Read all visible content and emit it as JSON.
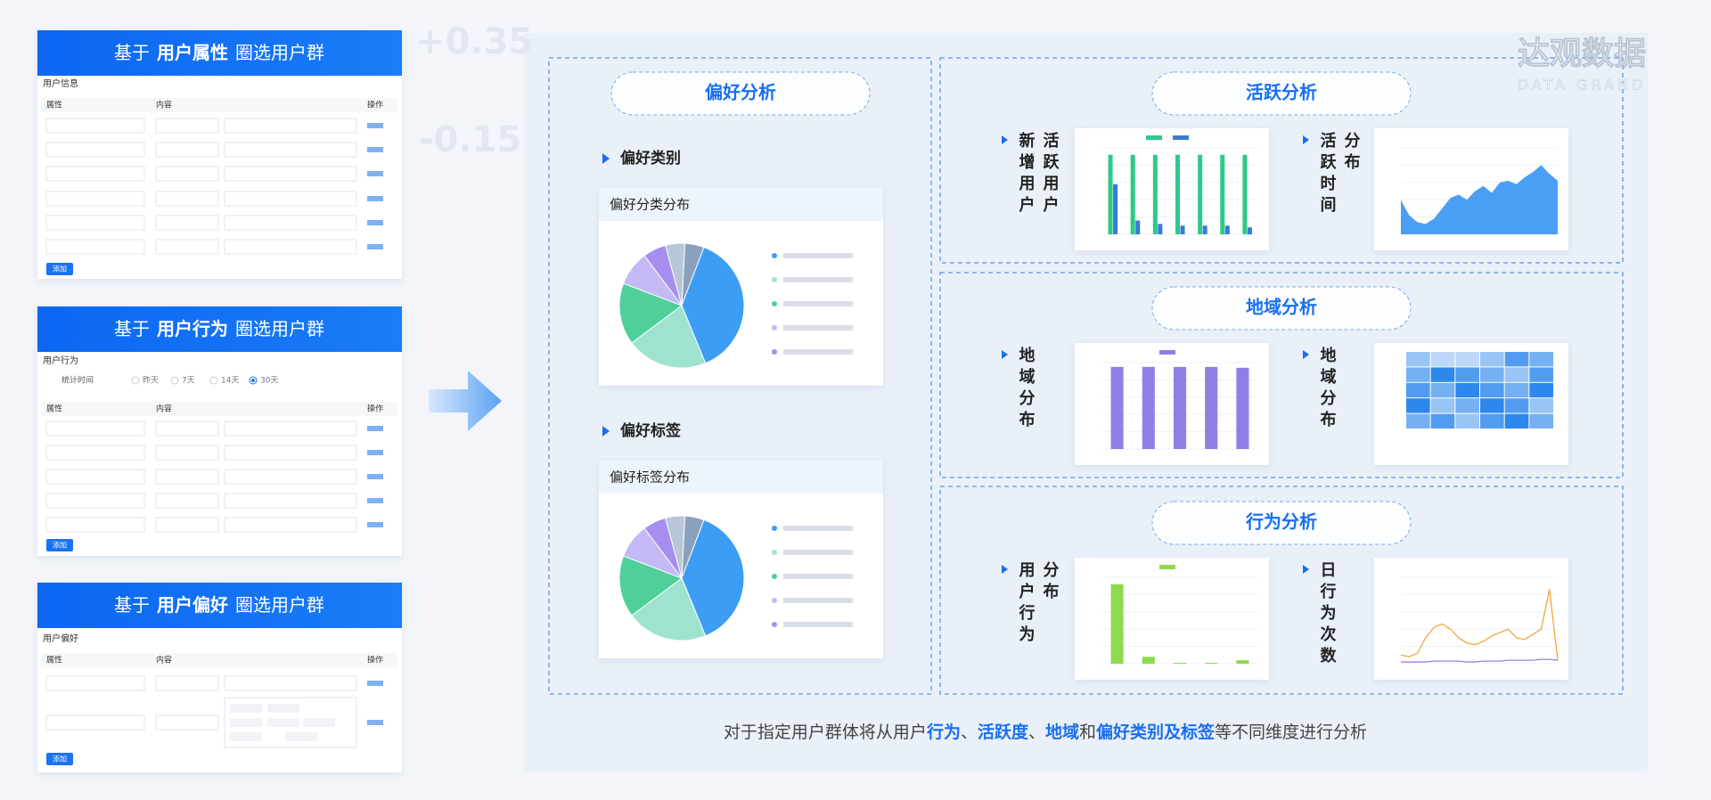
{
  "brand": {
    "name": "达观数据",
    "sub": "DATA GRAND"
  },
  "background_numbers": [
    "+0.35",
    "-0.15"
  ],
  "left_cards": [
    {
      "prefix": "基于",
      "key": "用户属性",
      "suffix": "圈选用户群",
      "section": "用户信息",
      "columns": [
        "属性",
        "内容",
        "操作"
      ],
      "button": "添加"
    },
    {
      "prefix": "基于",
      "key": "用户行为",
      "suffix": "圈选用户群",
      "section": "用户行为",
      "filter_label": "统计时间",
      "filter_options": [
        "昨天",
        "7天",
        "14天",
        "30天"
      ],
      "columns": [
        "属性",
        "内容",
        "操作"
      ],
      "button": "添加"
    },
    {
      "prefix": "基于",
      "key": "用户偏好",
      "suffix": "圈选用户群",
      "section": "用户偏好",
      "columns": [
        "属性",
        "内容",
        "操作"
      ],
      "button": "添加"
    }
  ],
  "preference": {
    "title": "偏好分析",
    "blocks": [
      {
        "heading": "偏好类别",
        "card_title": "偏好分类分布",
        "values": [
          5,
          38,
          21,
          16,
          9,
          6,
          5
        ],
        "colors": [
          "#8aa0bf",
          "#3d9df5",
          "#9ee3cf",
          "#4fcf9a",
          "#c4b9f4",
          "#a68ef0",
          "#b9c6d8"
        ]
      },
      {
        "heading": "偏好标签",
        "card_title": "偏好标签分布",
        "values": [
          5,
          38,
          21,
          16,
          9,
          6,
          5
        ],
        "colors": [
          "#8aa0bf",
          "#3d9df5",
          "#9ee3cf",
          "#4fcf9a",
          "#c4b9f4",
          "#a68ef0",
          "#b9c6d8"
        ]
      }
    ]
  },
  "panels": [
    {
      "title": "活跃分析",
      "charts": [
        {
          "label": [
            "新增用户",
            "活跃用户"
          ],
          "type": "grouped_bar",
          "ylim": [
            0,
            100
          ],
          "series": [
            {
              "color": "#2ec98a",
              "values": [
                92,
                92,
                92,
                92,
                92,
                92,
                92
              ]
            },
            {
              "color": "#3a7bd5",
              "values": [
                58,
                16,
                12,
                10,
                10,
                10,
                8
              ]
            }
          ]
        },
        {
          "label": [
            "活跃时间",
            "分布"
          ],
          "type": "area",
          "ylim": [
            0,
            100
          ],
          "color": "#4a9ff5",
          "values": [
            40,
            22,
            14,
            12,
            18,
            30,
            42,
            46,
            40,
            50,
            56,
            48,
            60,
            62,
            58,
            66,
            72,
            80,
            70,
            62
          ]
        }
      ]
    },
    {
      "title": "地域分析",
      "charts": [
        {
          "label": [
            "地域分布"
          ],
          "type": "bar",
          "ylim": [
            0,
            100
          ],
          "color": "#8e7fe6",
          "values": [
            95,
            95,
            95,
            95,
            94
          ]
        },
        {
          "label": [
            "地域分布"
          ],
          "type": "heatmap",
          "vmax": 5,
          "values": [
            [
              2,
              1,
              1,
              2,
              4,
              3
            ],
            [
              3,
              5,
              4,
              3,
              2,
              4
            ],
            [
              4,
              3,
              5,
              4,
              3,
              5
            ],
            [
              5,
              2,
              3,
              5,
              4,
              2
            ],
            [
              3,
              4,
              2,
              4,
              5,
              3
            ]
          ]
        }
      ]
    },
    {
      "title": "行为分析",
      "charts": [
        {
          "label": [
            "用户行为",
            "分布"
          ],
          "type": "bar",
          "ylim": [
            0,
            100
          ],
          "color": "#8fd94f",
          "values": [
            92,
            8,
            1,
            1,
            4
          ]
        },
        {
          "label": [
            "日行为次数"
          ],
          "type": "line",
          "ylim": [
            0,
            100
          ],
          "series": [
            {
              "color": "#f0a640",
              "values": [
                10,
                8,
                12,
                30,
                42,
                46,
                40,
                30,
                24,
                22,
                26,
                32,
                36,
                40,
                30,
                28,
                34,
                40,
                86,
                4
              ]
            },
            {
              "color": "#9b7fe0",
              "values": [
                2,
                2,
                2,
                2,
                3,
                3,
                3,
                3,
                2,
                2,
                3,
                3,
                3,
                4,
                4,
                4,
                4,
                5,
                5,
                4
              ]
            }
          ]
        }
      ]
    }
  ],
  "caption": [
    {
      "text": "对于指定用户群体将从用户",
      "highlight": false
    },
    {
      "text": "行为",
      "highlight": true
    },
    {
      "text": "、",
      "highlight": false
    },
    {
      "text": "活跃度",
      "highlight": true
    },
    {
      "text": "、",
      "highlight": false
    },
    {
      "text": "地域",
      "highlight": true
    },
    {
      "text": "和",
      "highlight": false
    },
    {
      "text": "偏好类别及标签",
      "highlight": true
    },
    {
      "text": "等不同维度进行分析",
      "highlight": false
    }
  ]
}
